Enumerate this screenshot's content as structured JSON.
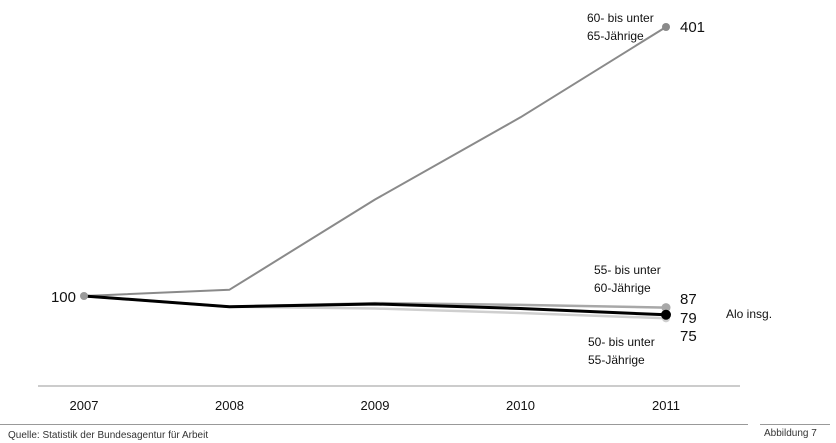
{
  "chart_data": {
    "type": "line",
    "x": [
      "2007",
      "2008",
      "2009",
      "2010",
      "2011"
    ],
    "ylim": [
      60,
      410
    ],
    "series": [
      {
        "key": "s60",
        "label_lines": [
          "60- bis unter",
          "65-Jährige"
        ],
        "values": [
          100,
          107,
          208,
          300,
          401
        ],
        "end_label": "401",
        "color": "#8a8a8a"
      },
      {
        "key": "s55",
        "label_lines": [
          "55- bis unter",
          "60-Jährige"
        ],
        "values": [
          100,
          88,
          92,
          90,
          87
        ],
        "end_label": "87",
        "color": "#a8a8a8"
      },
      {
        "key": "alo",
        "label_lines": [
          "Alo insg."
        ],
        "values": [
          100,
          88,
          91,
          86,
          79
        ],
        "end_label": "79",
        "color": "#000000"
      },
      {
        "key": "s50",
        "label_lines": [
          "50- bis unter",
          "55-Jährige"
        ],
        "values": [
          100,
          88,
          86,
          81,
          75
        ],
        "end_label": "75",
        "color": "#cfcfcf"
      }
    ],
    "start_label": "100"
  },
  "footer": {
    "source": "Quelle: Statistik der Bundesagentur für Arbeit",
    "figure": "Abbildung 7"
  }
}
